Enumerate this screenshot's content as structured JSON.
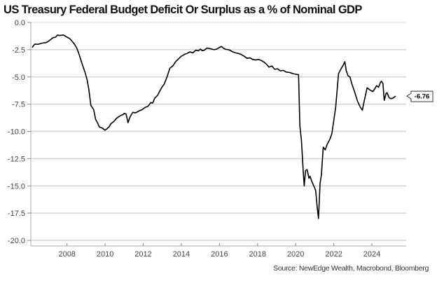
{
  "chart_data": {
    "type": "line",
    "title": "US Treasury Federal Budget Deficit Or Surplus as a % of Nominal GDP",
    "xlabel": "",
    "ylabel": "",
    "source": "Source: NewEdge Wealth, Macrobond, Bloomberg",
    "xlim": [
      2006.1,
      2025.8
    ],
    "ylim": [
      -20.0,
      0.0
    ],
    "x_ticks": [
      2008,
      2010,
      2012,
      2014,
      2016,
      2018,
      2020,
      2022,
      2024
    ],
    "x_tick_labels": [
      "2008",
      "2010",
      "2012",
      "2014",
      "2016",
      "2018",
      "2020",
      "2022",
      "2024"
    ],
    "y_ticks": [
      0,
      -2.5,
      -5,
      -7.5,
      -10,
      -12.5,
      -15,
      -17.5,
      -20
    ],
    "y_tick_labels": [
      "0.0",
      "-2.5",
      "-5.0",
      "-7.5",
      "-10.0",
      "-12.5",
      "-15.0",
      "-17.5",
      "-20.0"
    ],
    "grid": "horizontal",
    "last_value_label": "-6.76",
    "series": [
      {
        "name": "US Treasury Federal Budget Deficit Or Surplus % of Nominal GDP",
        "color": "#000000",
        "x": [
          2006.17,
          2006.3,
          2006.5,
          2006.7,
          2006.9,
          2007.05,
          2007.27,
          2007.4,
          2007.5,
          2007.6,
          2007.8,
          2007.95,
          2008.15,
          2008.25,
          2008.37,
          2008.5,
          2008.6,
          2008.8,
          2008.95,
          2009.06,
          2009.15,
          2009.25,
          2009.4,
          2009.5,
          2009.6,
          2009.7,
          2009.85,
          2010.0,
          2010.1,
          2010.2,
          2010.3,
          2010.45,
          2010.6,
          2010.8,
          2010.95,
          2011.0,
          2011.1,
          2011.2,
          2011.3,
          2011.45,
          2011.6,
          2011.8,
          2011.95,
          2012.1,
          2012.25,
          2012.4,
          2012.5,
          2012.6,
          2012.75,
          2012.9,
          2013.0,
          2013.1,
          2013.25,
          2013.4,
          2013.55,
          2013.7,
          2013.85,
          2014.0,
          2014.1,
          2014.2,
          2014.3,
          2014.45,
          2014.6,
          2014.75,
          2014.9,
          2015.0,
          2015.1,
          2015.2,
          2015.35,
          2015.5,
          2015.7,
          2015.85,
          2016.0,
          2016.1,
          2016.2,
          2016.3,
          2016.45,
          2016.55,
          2016.7,
          2016.85,
          2017.0,
          2017.15,
          2017.3,
          2017.45,
          2017.6,
          2017.75,
          2017.9,
          2018.05,
          2018.2,
          2018.35,
          2018.5,
          2018.6,
          2018.75,
          2018.9,
          2019.05,
          2019.2,
          2019.35,
          2019.5,
          2019.7,
          2019.85,
          2020.0,
          2020.15,
          2020.22,
          2020.3,
          2020.4,
          2020.45,
          2020.52,
          2020.6,
          2020.7,
          2020.75,
          2020.85,
          2020.9,
          2021.0,
          2021.05,
          2021.12,
          2021.2,
          2021.28,
          2021.35,
          2021.45,
          2021.55,
          2021.65,
          2021.8,
          2021.9,
          2022.0,
          2022.1,
          2022.25,
          2022.4,
          2022.5,
          2022.58,
          2022.65,
          2022.75,
          2022.85,
          2022.95,
          2023.1,
          2023.25,
          2023.4,
          2023.5,
          2023.6,
          2023.75,
          2023.9,
          2024.05,
          2024.15,
          2024.25,
          2024.35,
          2024.45,
          2024.5,
          2024.58,
          2024.65,
          2024.75,
          2024.8,
          2024.9,
          2025.0,
          2025.1,
          2025.25
        ],
        "values": [
          -2.3,
          -2.0,
          -2.0,
          -1.9,
          -1.85,
          -1.7,
          -1.4,
          -1.35,
          -1.15,
          -1.2,
          -1.15,
          -1.3,
          -1.5,
          -1.7,
          -1.95,
          -2.3,
          -2.75,
          -3.85,
          -4.6,
          -5.3,
          -6.2,
          -7.6,
          -8.0,
          -8.9,
          -9.2,
          -9.6,
          -9.7,
          -9.9,
          -9.75,
          -9.6,
          -9.3,
          -9.1,
          -8.8,
          -8.55,
          -8.45,
          -8.35,
          -8.4,
          -9.2,
          -8.7,
          -8.25,
          -8.3,
          -8.1,
          -8.0,
          -7.8,
          -7.7,
          -7.35,
          -7.4,
          -6.95,
          -6.7,
          -6.2,
          -5.9,
          -5.65,
          -5.0,
          -4.2,
          -4.0,
          -3.6,
          -3.35,
          -3.1,
          -3.0,
          -2.9,
          -2.85,
          -2.7,
          -2.8,
          -2.55,
          -2.6,
          -2.45,
          -2.6,
          -2.55,
          -2.35,
          -2.4,
          -2.5,
          -2.45,
          -2.3,
          -2.2,
          -2.35,
          -2.45,
          -2.5,
          -2.55,
          -2.7,
          -2.8,
          -2.85,
          -2.95,
          -3.1,
          -3.3,
          -3.25,
          -3.4,
          -3.45,
          -3.4,
          -3.5,
          -3.65,
          -3.9,
          -4.1,
          -4.0,
          -4.3,
          -4.25,
          -4.45,
          -4.4,
          -4.55,
          -4.6,
          -4.7,
          -4.75,
          -4.8,
          -9.5,
          -10.8,
          -13.8,
          -15.0,
          -13.6,
          -13.5,
          -14.3,
          -14.1,
          -14.6,
          -14.8,
          -15.2,
          -15.45,
          -16.8,
          -18.0,
          -14.8,
          -14.0,
          -11.45,
          -11.7,
          -11.2,
          -10.7,
          -10.2,
          -9.0,
          -7.8,
          -4.7,
          -4.2,
          -3.9,
          -3.6,
          -4.4,
          -4.9,
          -5.0,
          -5.65,
          -6.4,
          -7.25,
          -7.8,
          -8.05,
          -7.2,
          -6.0,
          -6.2,
          -6.35,
          -6.1,
          -5.8,
          -5.95,
          -5.5,
          -5.4,
          -5.6,
          -7.15,
          -6.5,
          -6.45,
          -6.9,
          -7.0,
          -6.95,
          -6.76
        ]
      }
    ]
  }
}
